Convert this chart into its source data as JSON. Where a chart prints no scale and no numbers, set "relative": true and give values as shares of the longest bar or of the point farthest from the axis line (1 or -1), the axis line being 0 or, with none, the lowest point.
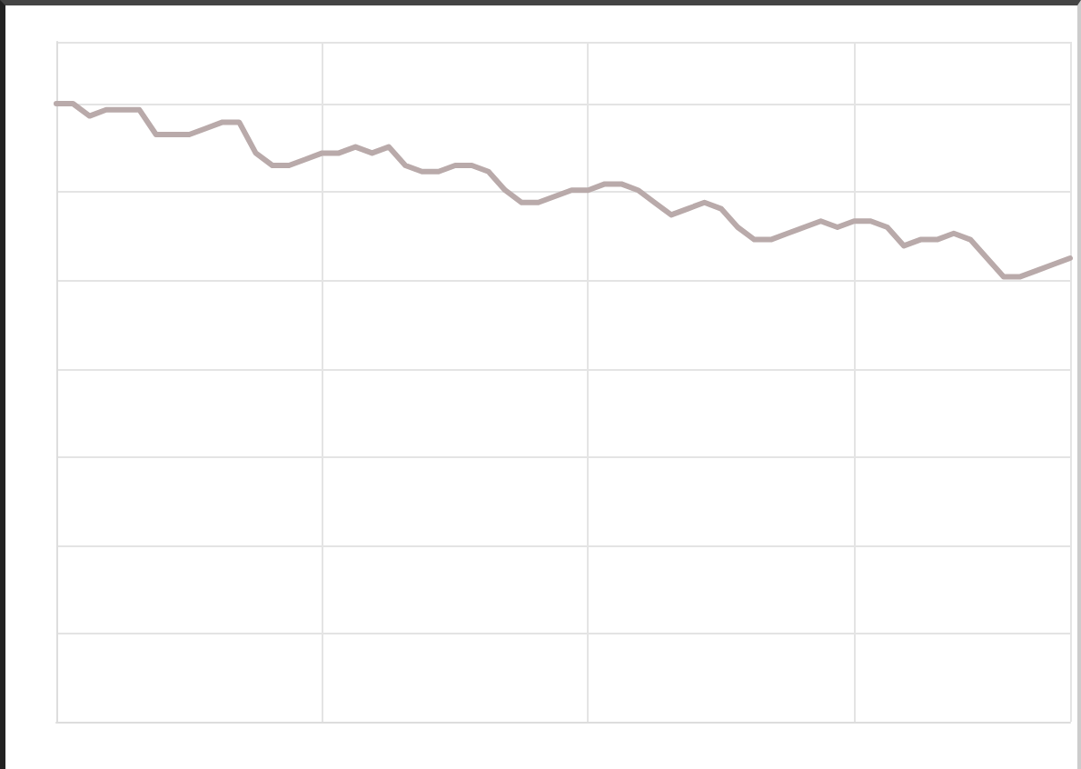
{
  "chart_data": {
    "type": "line",
    "relative": true,
    "grid": true,
    "marker": "none",
    "line_style": "solid",
    "categories": [
      null,
      null,
      null,
      null,
      null,
      null,
      null,
      null,
      null,
      null,
      null,
      null,
      null,
      null,
      null,
      null,
      null,
      null,
      null,
      null,
      null,
      null,
      null,
      null,
      null,
      null,
      null,
      null,
      null,
      null,
      null,
      null,
      null,
      null,
      null,
      null,
      null,
      null,
      null,
      null,
      null,
      null,
      null,
      null,
      null,
      null,
      null,
      null,
      null,
      null,
      null,
      null,
      null,
      null,
      null,
      null,
      null,
      null,
      null,
      null,
      null,
      null
    ],
    "series": [
      {
        "color": "#b9aaaa",
        "values": [
          1.0,
          1.0,
          0.98,
          0.99,
          0.99,
          0.99,
          0.95,
          0.95,
          0.95,
          0.96,
          0.97,
          0.97,
          0.92,
          0.9,
          0.9,
          0.91,
          0.92,
          0.92,
          0.93,
          0.92,
          0.93,
          0.9,
          0.89,
          0.89,
          0.9,
          0.9,
          0.89,
          0.86,
          0.84,
          0.84,
          0.85,
          0.86,
          0.86,
          0.87,
          0.87,
          0.86,
          0.84,
          0.82,
          0.83,
          0.84,
          0.83,
          0.8,
          0.78,
          0.78,
          0.79,
          0.8,
          0.81,
          0.8,
          0.81,
          0.81,
          0.8,
          0.77,
          0.78,
          0.78,
          0.79,
          0.78,
          0.75,
          0.72,
          0.72,
          0.73,
          0.74,
          0.75
        ]
      }
    ]
  }
}
